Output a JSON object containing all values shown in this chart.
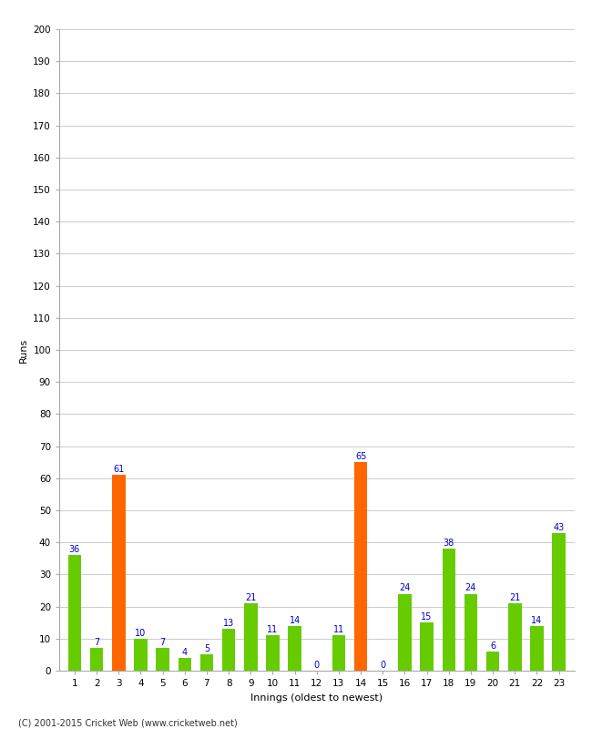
{
  "values": [
    36,
    7,
    61,
    10,
    7,
    4,
    5,
    13,
    21,
    11,
    14,
    0,
    11,
    65,
    0,
    24,
    15,
    38,
    24,
    6,
    21,
    14,
    43
  ],
  "categories": [
    "1",
    "2",
    "3",
    "4",
    "5",
    "6",
    "7",
    "8",
    "9",
    "10",
    "11",
    "12",
    "13",
    "14",
    "15",
    "16",
    "17",
    "18",
    "19",
    "20",
    "21",
    "22",
    "23"
  ],
  "orange_indices": [
    2,
    13
  ],
  "bar_color_default": "#66cc00",
  "bar_color_highlight": "#ff6600",
  "label_color": "#0000cc",
  "background_color": "#ffffff",
  "grid_color": "#cccccc",
  "ylabel": "Runs",
  "xlabel": "Innings (oldest to newest)",
  "ylim": [
    0,
    200
  ],
  "yticks": [
    0,
    10,
    20,
    30,
    40,
    50,
    60,
    70,
    80,
    90,
    100,
    110,
    120,
    130,
    140,
    150,
    160,
    170,
    180,
    190,
    200
  ],
  "footer": "(C) 2001-2015 Cricket Web (www.cricketweb.net)",
  "label_fontsize": 7,
  "tick_fontsize": 7.5,
  "ylabel_fontsize": 8,
  "xlabel_fontsize": 8
}
